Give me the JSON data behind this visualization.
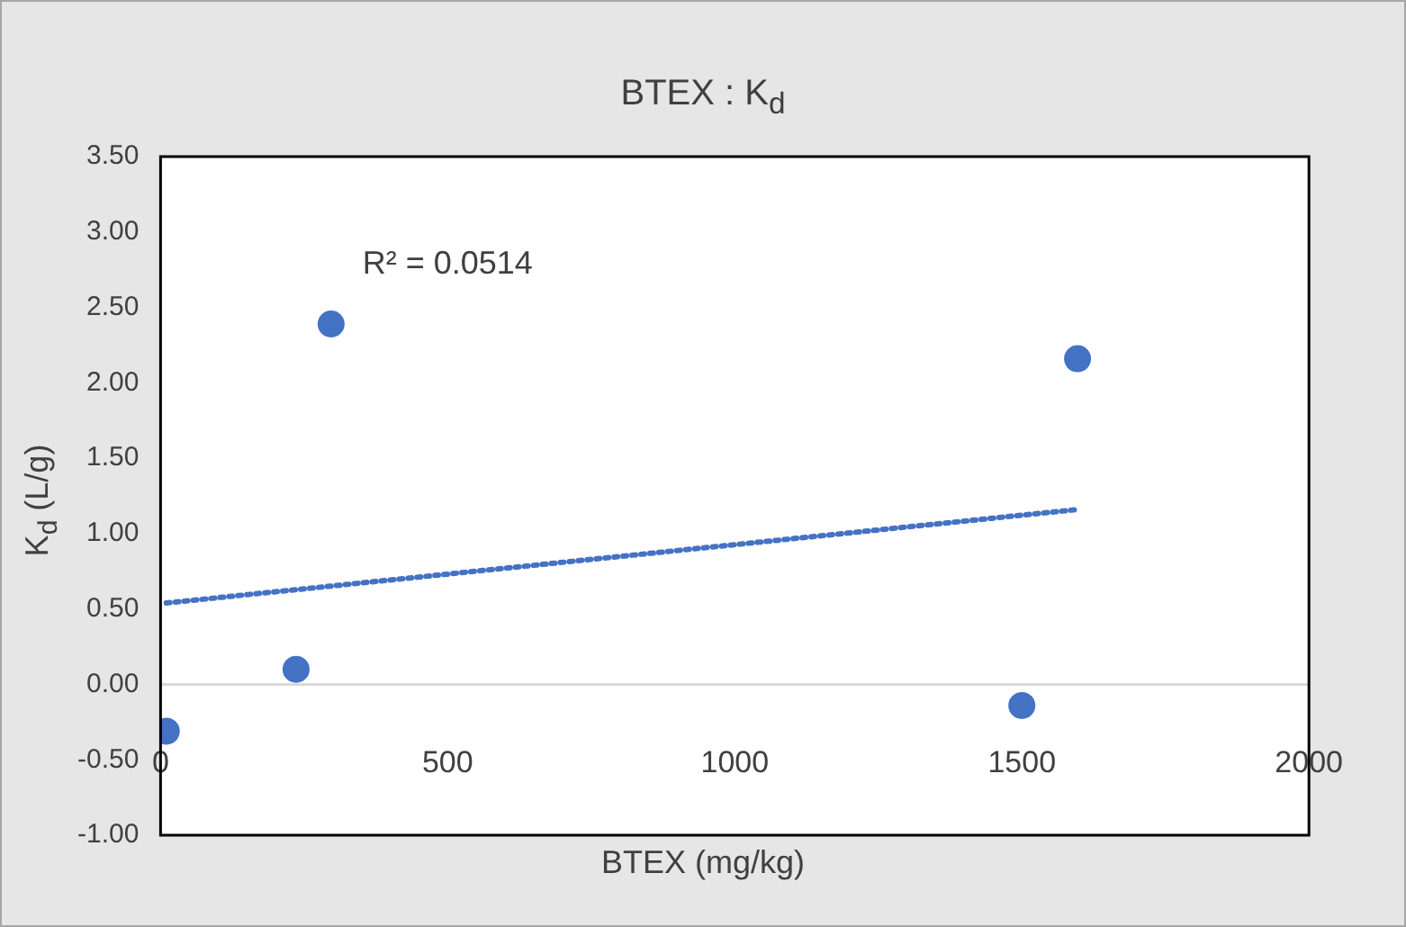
{
  "chart_data": {
    "type": "scatter",
    "title": "BTEX : K$_{d}$",
    "xlabel": "BTEX (mg/kg)",
    "ylabel": "K$_{d}$ (L/g)",
    "annotations": [
      "R² = 0.0514"
    ],
    "marker": "circle",
    "grid": false,
    "ref_lines": [
      {
        "axis": "y",
        "value": 0,
        "color": "#d9d9d9"
      }
    ],
    "xlim": [
      0,
      2000
    ],
    "xticks": [
      0,
      500,
      1000,
      1500,
      2000
    ],
    "ylim": [
      -1,
      3.5
    ],
    "yticks": [
      {
        "value": -1,
        "label": "-1.00"
      },
      {
        "value": -0.5,
        "label": "-0.50"
      },
      {
        "value": 0,
        "label": "0.00"
      },
      {
        "value": 0.5,
        "label": "0.50"
      },
      {
        "value": 1,
        "label": "1.00"
      },
      {
        "value": 1.5,
        "label": "1.50"
      },
      {
        "value": 2,
        "label": "2.00"
      },
      {
        "value": 2.5,
        "label": "2.50"
      },
      {
        "value": 3,
        "label": "3.00"
      },
      {
        "value": 3.5,
        "label": "3.50"
      }
    ],
    "series": [
      {
        "color": "#4472c4",
        "x": [
          10,
          236,
          297,
          1500,
          1597
        ],
        "values": [
          -0.31,
          0.1,
          2.39,
          -0.14,
          2.16
        ]
      },
      {
        "type": "line",
        "line_style": "dotted",
        "marker": "none",
        "color": "#4472c4",
        "x": [
          10,
          1597
        ],
        "values": [
          0.54,
          1.16
        ]
      }
    ]
  }
}
